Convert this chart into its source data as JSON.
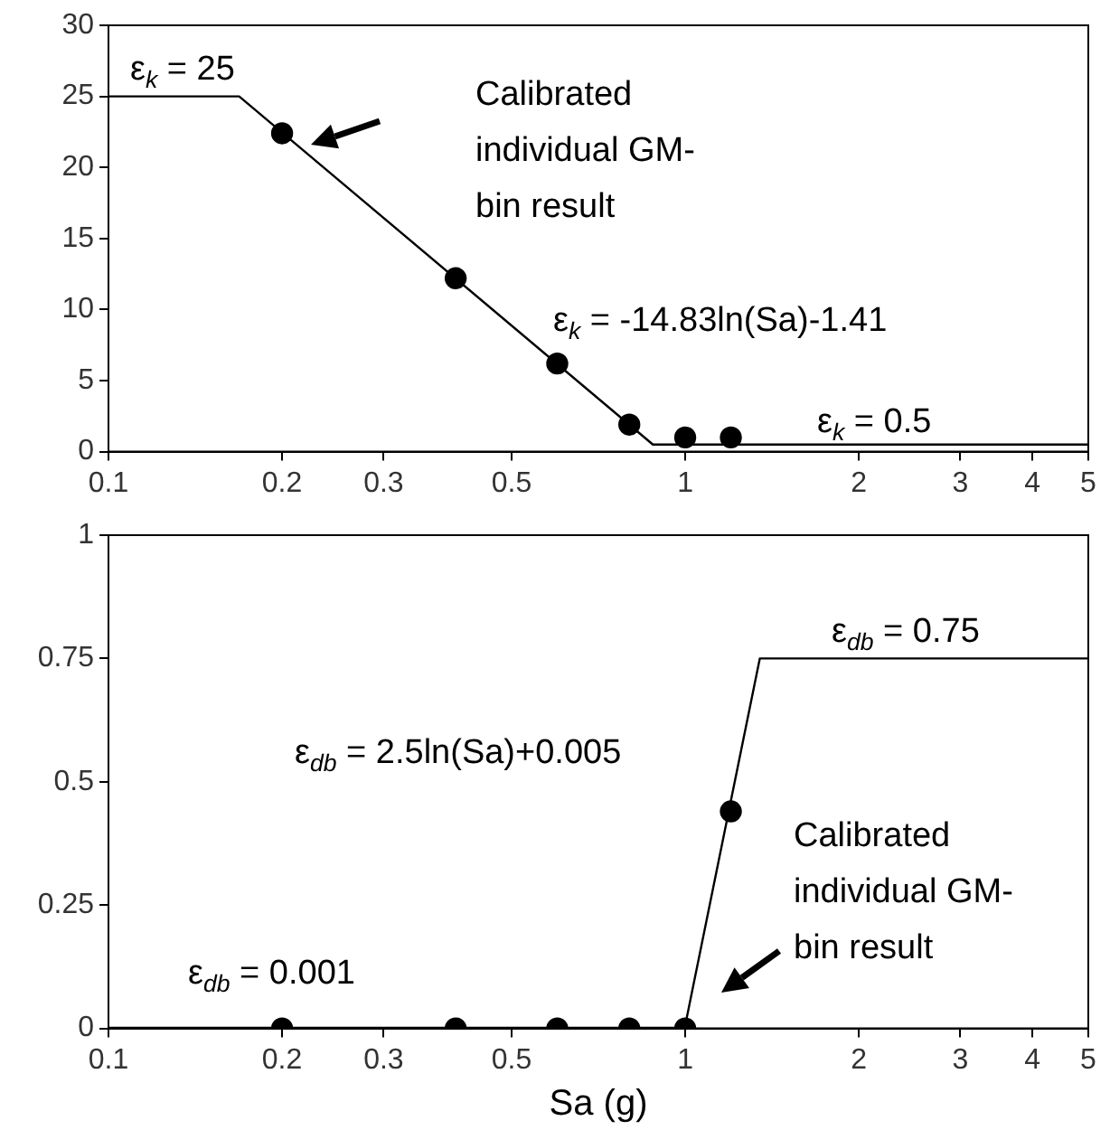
{
  "chart_data": [
    {
      "type": "scatter",
      "log": "x",
      "xlim": [
        0.1,
        5
      ],
      "xticks": [
        0.1,
        0.2,
        0.3,
        0.5,
        1,
        2,
        3,
        4,
        5
      ],
      "ylim": [
        0,
        30
      ],
      "yticks": [
        0,
        5,
        10,
        15,
        20,
        25,
        30
      ],
      "series": [
        {
          "type": "line",
          "color": "#000000",
          "marker": "none",
          "x": [
            0.1,
            0.1685,
            0.879,
            5
          ],
          "values": [
            25,
            25,
            0.5,
            0.5
          ]
        },
        {
          "type": "scatter",
          "color": "#000000",
          "marker": "circle",
          "x": [
            0.2,
            0.4,
            0.6,
            0.8,
            1.0,
            1.2
          ],
          "values": [
            22.4,
            12.2,
            6.2,
            1.9,
            1.0,
            1.0
          ]
        }
      ],
      "annotations": [
        "ε$_{k}$ = 25",
        "Calibrated\nindividual GM-\nbin result",
        "ε$_{k}$ = -14.83ln(Sa)-1.41",
        "ε$_{k}$ = 0.5"
      ]
    },
    {
      "type": "scatter",
      "log": "x",
      "xlabel": "Sa (g)",
      "xlim": [
        0.1,
        5
      ],
      "xticks": [
        0.1,
        0.2,
        0.3,
        0.5,
        1,
        2,
        3,
        4,
        5
      ],
      "ylim": [
        0,
        1
      ],
      "yticks": [
        0,
        0.25,
        0.5,
        0.75,
        1
      ],
      "series": [
        {
          "type": "line",
          "color": "#000000",
          "marker": "none",
          "x": [
            0.1,
            0.998,
            1.347,
            5
          ],
          "values": [
            0.001,
            0.001,
            0.75,
            0.75
          ]
        },
        {
          "type": "scatter",
          "color": "#000000",
          "marker": "circle",
          "x": [
            0.2,
            0.4,
            0.6,
            0.8,
            1.0,
            1.2
          ],
          "values": [
            0,
            0,
            0,
            0,
            0,
            0.44
          ]
        }
      ],
      "annotations": [
        "ε$_{db}$ = 0.75",
        "ε$_{db}$ = 2.5ln(Sa)+0.005",
        "Calibrated\nindividual GM-\nbin result",
        "ε$_{db}$ = 0.001"
      ]
    }
  ]
}
